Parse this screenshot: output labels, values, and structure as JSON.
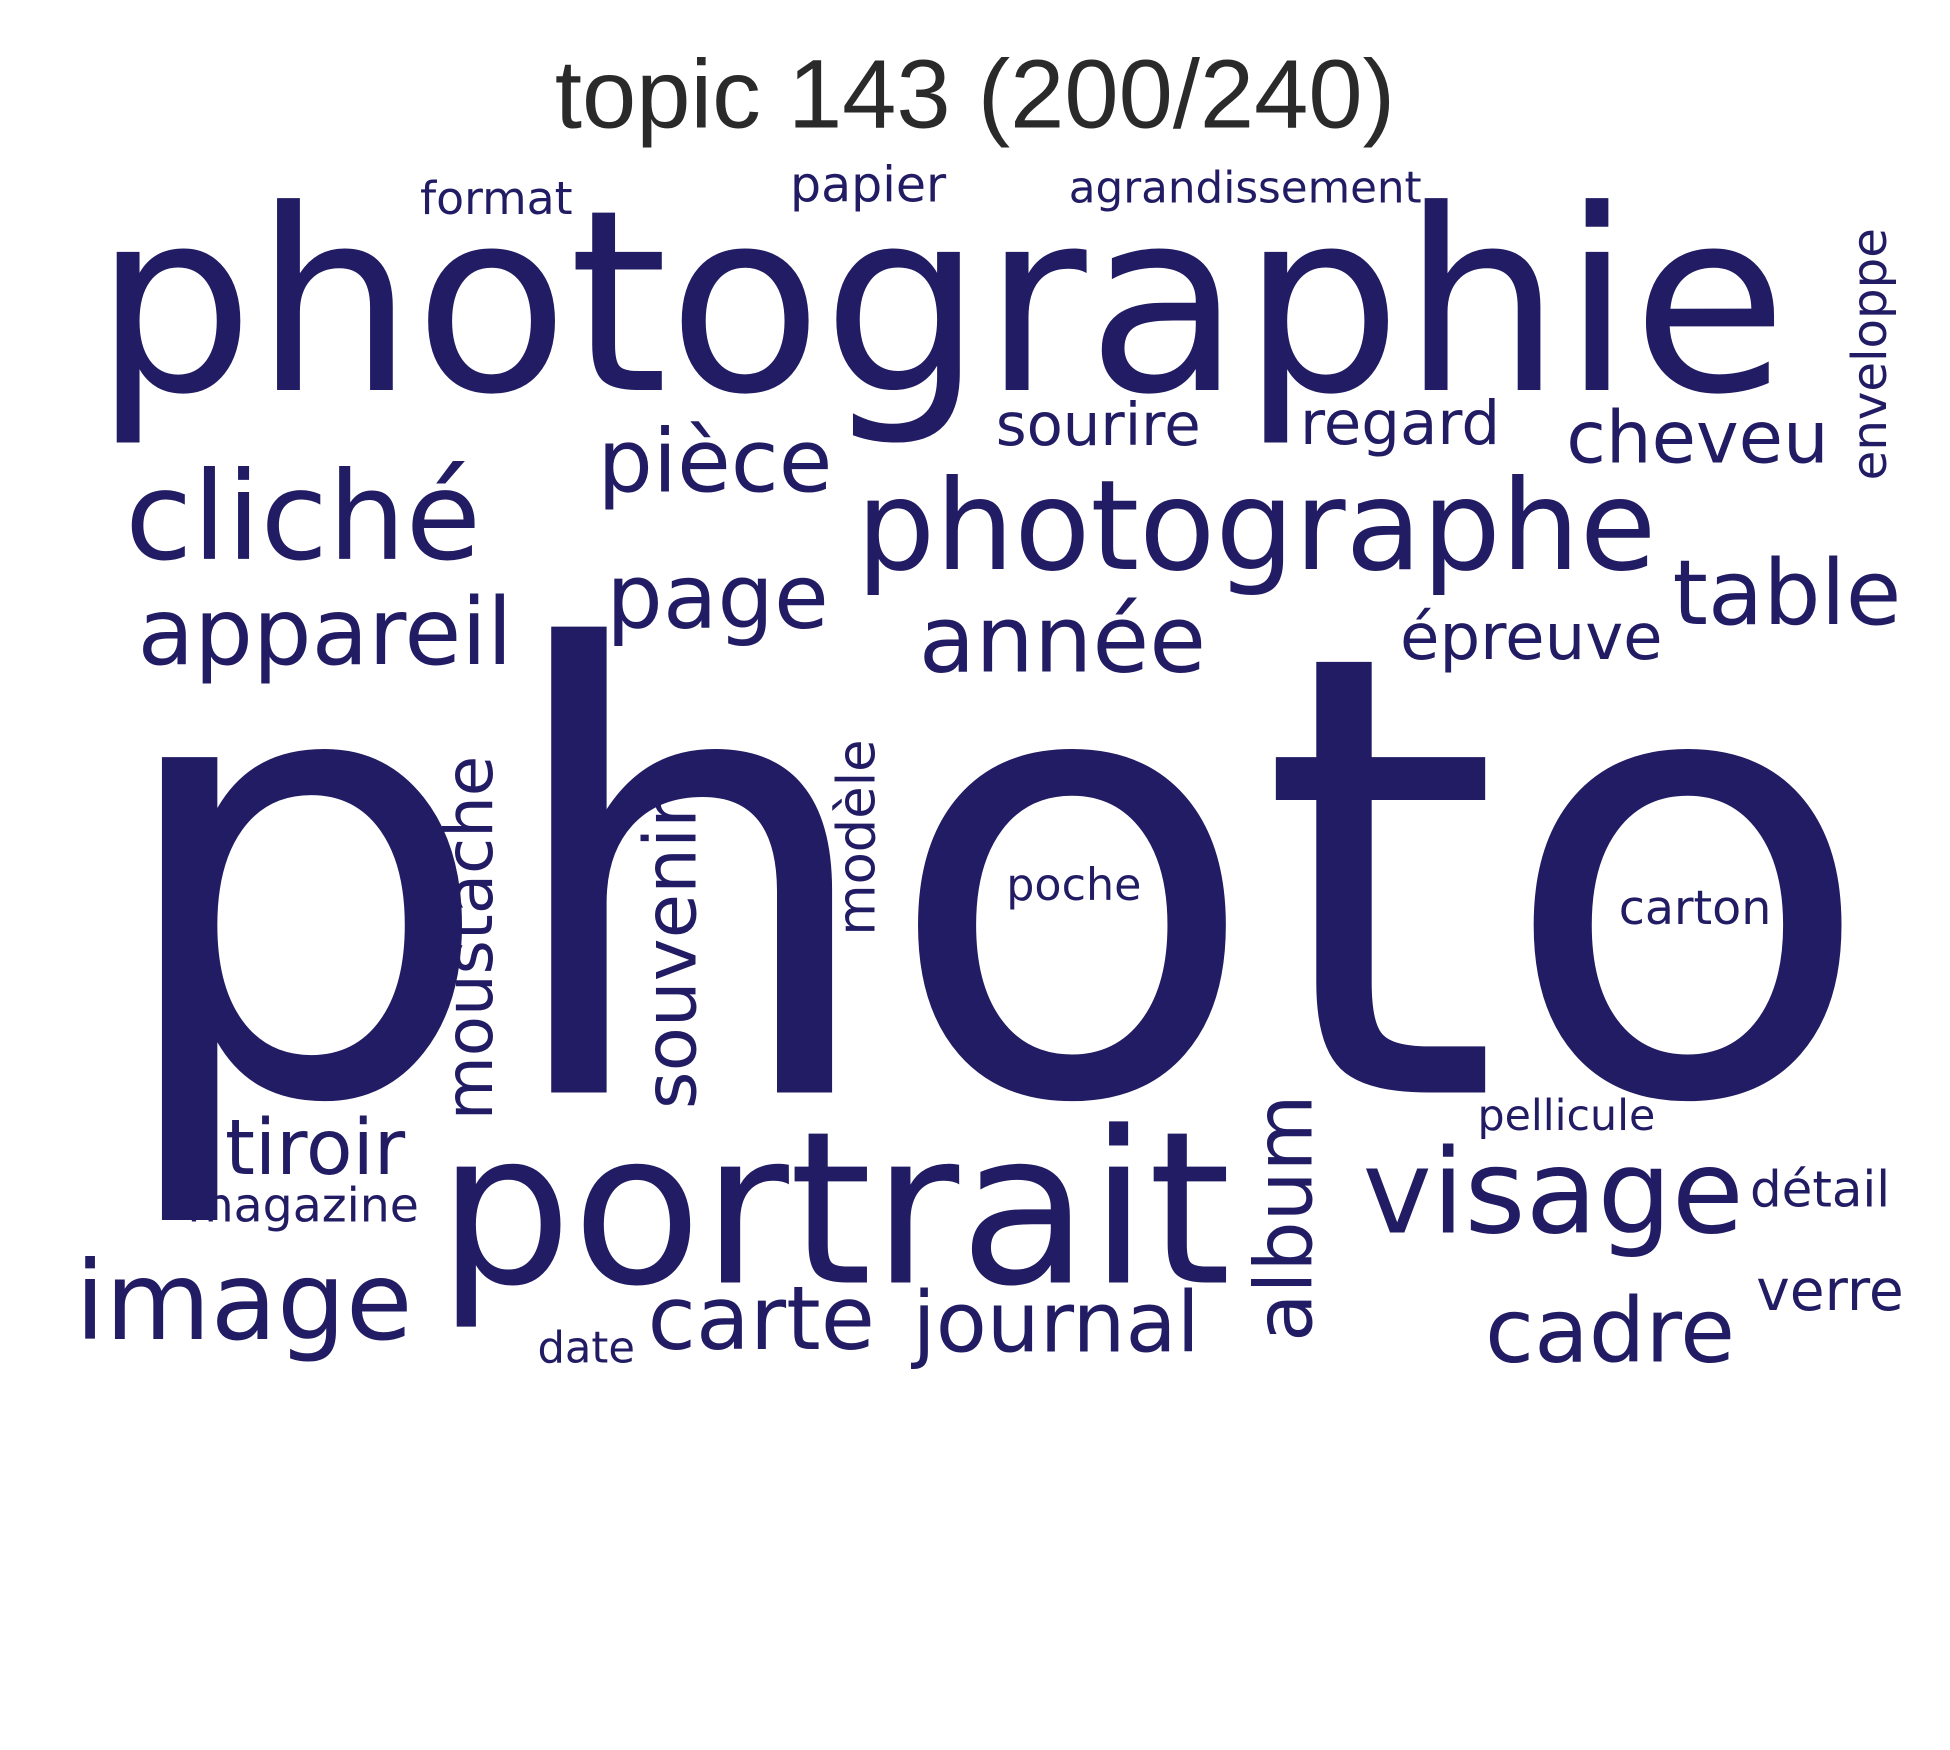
{
  "title": "topic 143 (200/240)",
  "text_color": "#211c63",
  "words": [
    {
      "id": "photo",
      "text": "photo"
    },
    {
      "id": "photographie",
      "text": "photographie"
    },
    {
      "id": "portrait",
      "text": "portrait"
    },
    {
      "id": "photographe",
      "text": "photographe"
    },
    {
      "id": "image",
      "text": "image"
    },
    {
      "id": "cliche",
      "text": "cliché"
    },
    {
      "id": "visage",
      "text": "visage"
    },
    {
      "id": "appareil",
      "text": "appareil"
    },
    {
      "id": "annee",
      "text": "année"
    },
    {
      "id": "piece",
      "text": "pièce"
    },
    {
      "id": "page",
      "text": "page"
    },
    {
      "id": "table",
      "text": "table"
    },
    {
      "id": "cadre",
      "text": "cadre"
    },
    {
      "id": "journal",
      "text": "journal"
    },
    {
      "id": "carte",
      "text": "carte"
    },
    {
      "id": "album",
      "text": "album"
    },
    {
      "id": "cheveu",
      "text": "cheveu"
    },
    {
      "id": "moustache",
      "text": "moustache"
    },
    {
      "id": "souvenir",
      "text": "souvenir"
    },
    {
      "id": "tiroir",
      "text": "tiroir"
    },
    {
      "id": "epreuve",
      "text": "épreuve"
    },
    {
      "id": "regard",
      "text": "regard"
    },
    {
      "id": "sourire",
      "text": "sourire"
    },
    {
      "id": "modele",
      "text": "modèle"
    },
    {
      "id": "enveloppe",
      "text": "enveloppe"
    },
    {
      "id": "magazine",
      "text": "magazine"
    },
    {
      "id": "verre",
      "text": "verre"
    },
    {
      "id": "detail",
      "text": "détail"
    },
    {
      "id": "papier",
      "text": "papier"
    },
    {
      "id": "format",
      "text": "format"
    },
    {
      "id": "agrandissement",
      "text": "agrandissement"
    },
    {
      "id": "carton",
      "text": "carton"
    },
    {
      "id": "poche",
      "text": "poche"
    },
    {
      "id": "pellicule",
      "text": "pellicule"
    },
    {
      "id": "date",
      "text": "date"
    }
  ]
}
